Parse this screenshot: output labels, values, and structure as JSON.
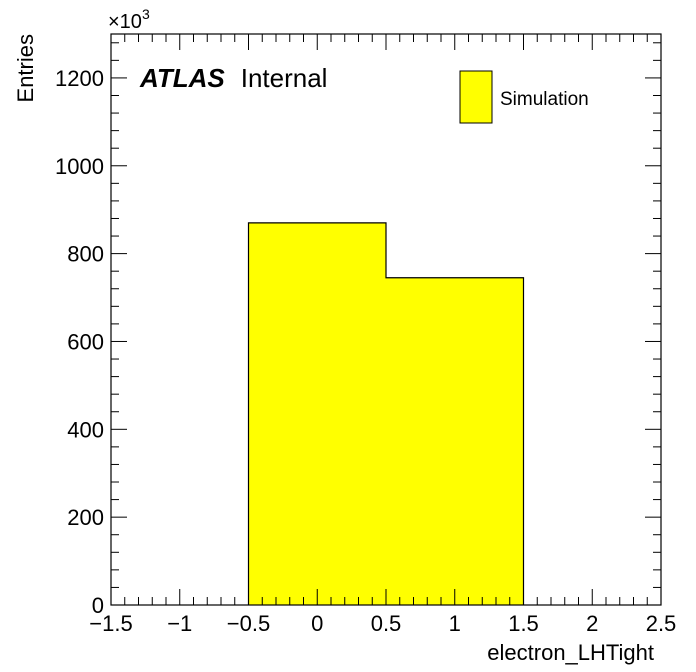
{
  "chart_data": {
    "type": "bar",
    "title": "",
    "xlabel": "electron_LHTight",
    "ylabel": "Entries",
    "xlim": [
      -1.5,
      2.5
    ],
    "ylim": [
      0,
      1300
    ],
    "y_multiplier": "×10",
    "y_multiplier_exponent": "3",
    "x_tick_labels": [
      "−1.5",
      "−1",
      "−0.5",
      "0",
      "0.5",
      "1",
      "1.5",
      "2",
      "2.5"
    ],
    "x_tick_values": [
      -1.5,
      -1,
      -0.5,
      0,
      0.5,
      1,
      1.5,
      2,
      2.5
    ],
    "y_tick_labels": [
      "0",
      "200",
      "400",
      "600",
      "800",
      "1000",
      "1200"
    ],
    "y_tick_values": [
      0,
      200,
      400,
      600,
      800,
      1000,
      1200
    ],
    "bins": [
      {
        "low": -0.5,
        "high": 0.5,
        "value": 870
      },
      {
        "low": 0.5,
        "high": 1.5,
        "value": 745
      }
    ],
    "series": [
      {
        "name": "Simulation",
        "color": "#ffff00"
      }
    ],
    "legend_placement": "top-right",
    "grid": false
  },
  "atlas_label": "ATLAS",
  "atlas_status": "Internal",
  "colors": {
    "fill": "#ffff00",
    "line": "#000000"
  }
}
